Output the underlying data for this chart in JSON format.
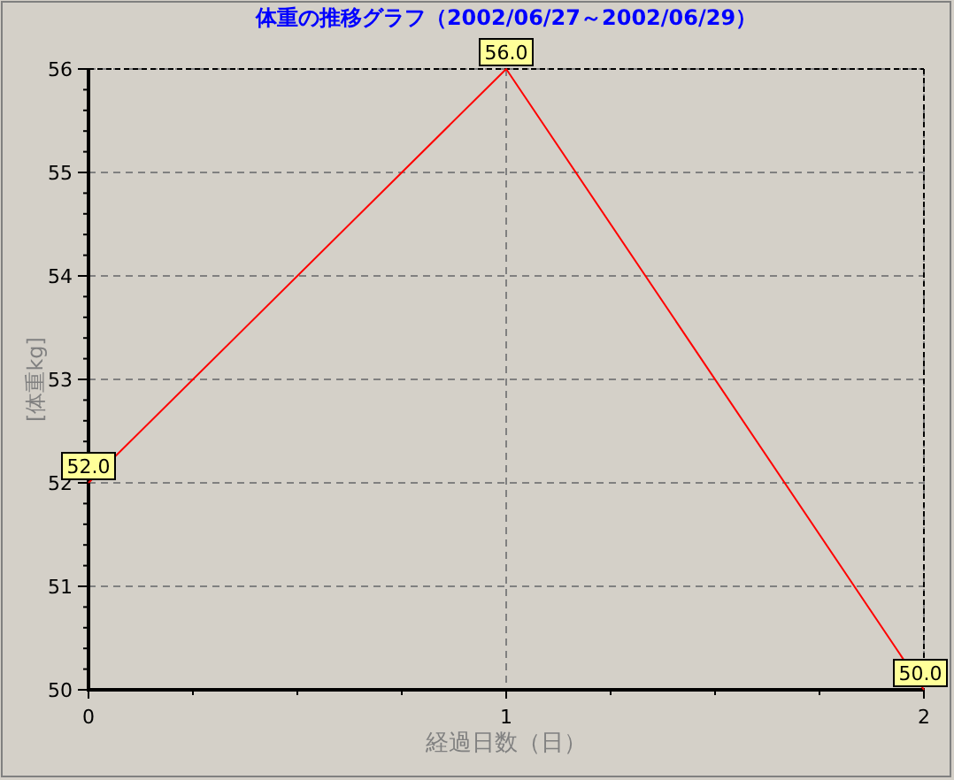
{
  "chart_data": {
    "type": "line",
    "title": "体重の推移グラフ（2002/06/27～2002/06/29）",
    "xlabel": "経過日数（日）",
    "ylabel": "[体重kg]",
    "x": [
      0,
      1,
      2
    ],
    "series": [
      {
        "color": "#ff0000",
        "values": [
          52.0,
          56.0,
          50.0
        ],
        "value_labels": [
          "52.0",
          "56.0",
          "50.0"
        ]
      }
    ],
    "xlim": [
      0,
      2
    ],
    "ylim": [
      50,
      56
    ],
    "xticks": [
      0,
      1,
      2
    ],
    "yticks": [
      50,
      51,
      52,
      53,
      54,
      55,
      56
    ],
    "grid": true
  }
}
